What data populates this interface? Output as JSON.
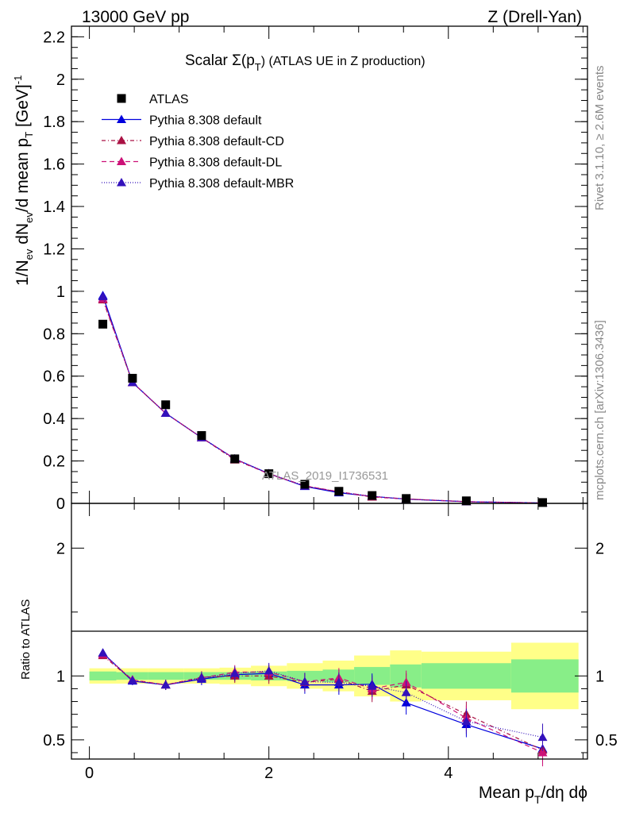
{
  "header": {
    "left": "13000 GeV pp",
    "right": "Z (Drell-Yan)"
  },
  "side_labels": {
    "rivet": "Rivet 3.1.10, ≥ 2.6M events",
    "mcplots": "mcplots.cern.ch [arXiv:1306.3436]"
  },
  "chart_data": [
    {
      "type": "scatter",
      "panel": "main",
      "title": "Scalar Σ(p",
      "title_sub": "T",
      "title_tail": ") (ATLAS UE in Z production)",
      "ylabel_parts": [
        "1/N",
        "ev",
        " dN",
        "ev",
        "/d mean p",
        "T",
        " [GeV]",
        "-1"
      ],
      "analysis_label": "ATLAS_2019_I1736531",
      "xlim": [
        -0.2,
        5.55
      ],
      "ylim": [
        0,
        2.25
      ],
      "y_ticks": [
        0,
        0.2,
        0.4,
        0.6,
        0.8,
        1,
        1.2,
        1.4,
        1.6,
        1.8,
        2,
        2.2
      ],
      "y_tick_labels": [
        "0",
        "0.2",
        "0.4",
        "0.6",
        "0.8",
        "1",
        "1.2",
        "1.4",
        "1.6",
        "1.8",
        "2",
        "2.2"
      ],
      "x": [
        0.15,
        0.48,
        0.85,
        1.25,
        1.62,
        2.0,
        2.4,
        2.78,
        3.15,
        3.53,
        4.2,
        5.05
      ],
      "series": [
        {
          "name": "ATLAS",
          "color": "#000000",
          "marker": "square",
          "dash": "",
          "values": [
            0.845,
            0.59,
            0.465,
            0.32,
            0.21,
            0.14,
            0.09,
            0.057,
            0.037,
            0.023,
            0.012,
            0.004
          ]
        },
        {
          "name": "Pythia 8.308 default",
          "color": "#0000dd",
          "marker": "triangle",
          "dash": "",
          "values": [
            0.98,
            0.57,
            0.425,
            0.31,
            0.21,
            0.14,
            0.08,
            0.05,
            0.033,
            0.02,
            0.008,
            0.002
          ]
        },
        {
          "name": "Pythia 8.308 default-CD",
          "color": "#aa1144",
          "marker": "triangle",
          "dash": "5,3,1,3",
          "values": [
            0.96,
            0.57,
            0.425,
            0.31,
            0.205,
            0.14,
            0.082,
            0.054,
            0.03,
            0.021,
            0.008,
            0.002
          ]
        },
        {
          "name": "Pythia 8.308 default-DL",
          "color": "#cc1177",
          "marker": "triangle",
          "dash": "6,4",
          "values": [
            0.965,
            0.57,
            0.425,
            0.31,
            0.21,
            0.138,
            0.083,
            0.055,
            0.032,
            0.021,
            0.008,
            0.002
          ]
        },
        {
          "name": "Pythia 8.308 default-MBR",
          "color": "#3311bb",
          "marker": "triangle",
          "dash": "1,2",
          "values": [
            0.975,
            0.57,
            0.425,
            0.31,
            0.21,
            0.141,
            0.082,
            0.053,
            0.034,
            0.02,
            0.008,
            0.002
          ]
        }
      ]
    },
    {
      "type": "line",
      "panel": "ratio",
      "ylabel": "Ratio to ATLAS",
      "xlabel": "Mean p",
      "xlabel_sub": "T",
      "xlabel_tail": "/dη dϕ",
      "xlim": [
        -0.2,
        5.55
      ],
      "ylim": [
        0.35,
        2.35
      ],
      "y_ticks": [
        0.5,
        1,
        2
      ],
      "y_tick_labels": [
        "0.5",
        "1",
        "2"
      ],
      "x_ticks": [
        0,
        2,
        4
      ],
      "x_tick_labels": [
        "0",
        "2",
        "4"
      ],
      "bands": {
        "edges": [
          0,
          0.3,
          0.65,
          1.05,
          1.45,
          1.8,
          2.2,
          2.6,
          2.95,
          3.35,
          3.7,
          4.7,
          5.45
        ],
        "green": [
          0.035,
          0.03,
          0.03,
          0.03,
          0.03,
          0.035,
          0.04,
          0.05,
          0.07,
          0.09,
          0.1,
          0.13
        ],
        "yellow": [
          0.06,
          0.06,
          0.06,
          0.06,
          0.065,
          0.08,
          0.1,
          0.12,
          0.16,
          0.2,
          0.19,
          0.26
        ]
      },
      "x": [
        0.15,
        0.48,
        0.85,
        1.25,
        1.62,
        2.0,
        2.4,
        2.78,
        3.15,
        3.53,
        4.2,
        5.05
      ],
      "series": [
        {
          "name": "Pythia 8.308 default",
          "color": "#0000dd",
          "marker": "triangle",
          "dash": "",
          "values": [
            1.18,
            0.96,
            0.93,
            0.975,
            1.01,
            1.02,
            0.93,
            0.93,
            0.935,
            0.79,
            0.62,
            0.43
          ]
        },
        {
          "name": "Pythia 8.308 default-CD",
          "color": "#aa1144",
          "marker": "triangle",
          "dash": "5,3,1,3",
          "values": [
            1.16,
            0.965,
            0.93,
            0.99,
            1.0,
            1.0,
            0.95,
            0.975,
            0.88,
            0.93,
            0.7,
            0.42
          ]
        },
        {
          "name": "Pythia 8.308 default-DL",
          "color": "#cc1177",
          "marker": "triangle",
          "dash": "6,4",
          "values": [
            1.17,
            0.97,
            0.93,
            0.985,
            1.03,
            1.03,
            0.955,
            0.985,
            0.9,
            0.95,
            0.67,
            0.4
          ]
        },
        {
          "name": "Pythia 8.308 default-MBR",
          "color": "#3311bb",
          "marker": "triangle",
          "dash": "1,2",
          "values": [
            1.18,
            0.965,
            0.93,
            0.985,
            1.02,
            1.04,
            0.955,
            0.95,
            0.92,
            0.87,
            0.645,
            0.52
          ]
        }
      ]
    }
  ]
}
